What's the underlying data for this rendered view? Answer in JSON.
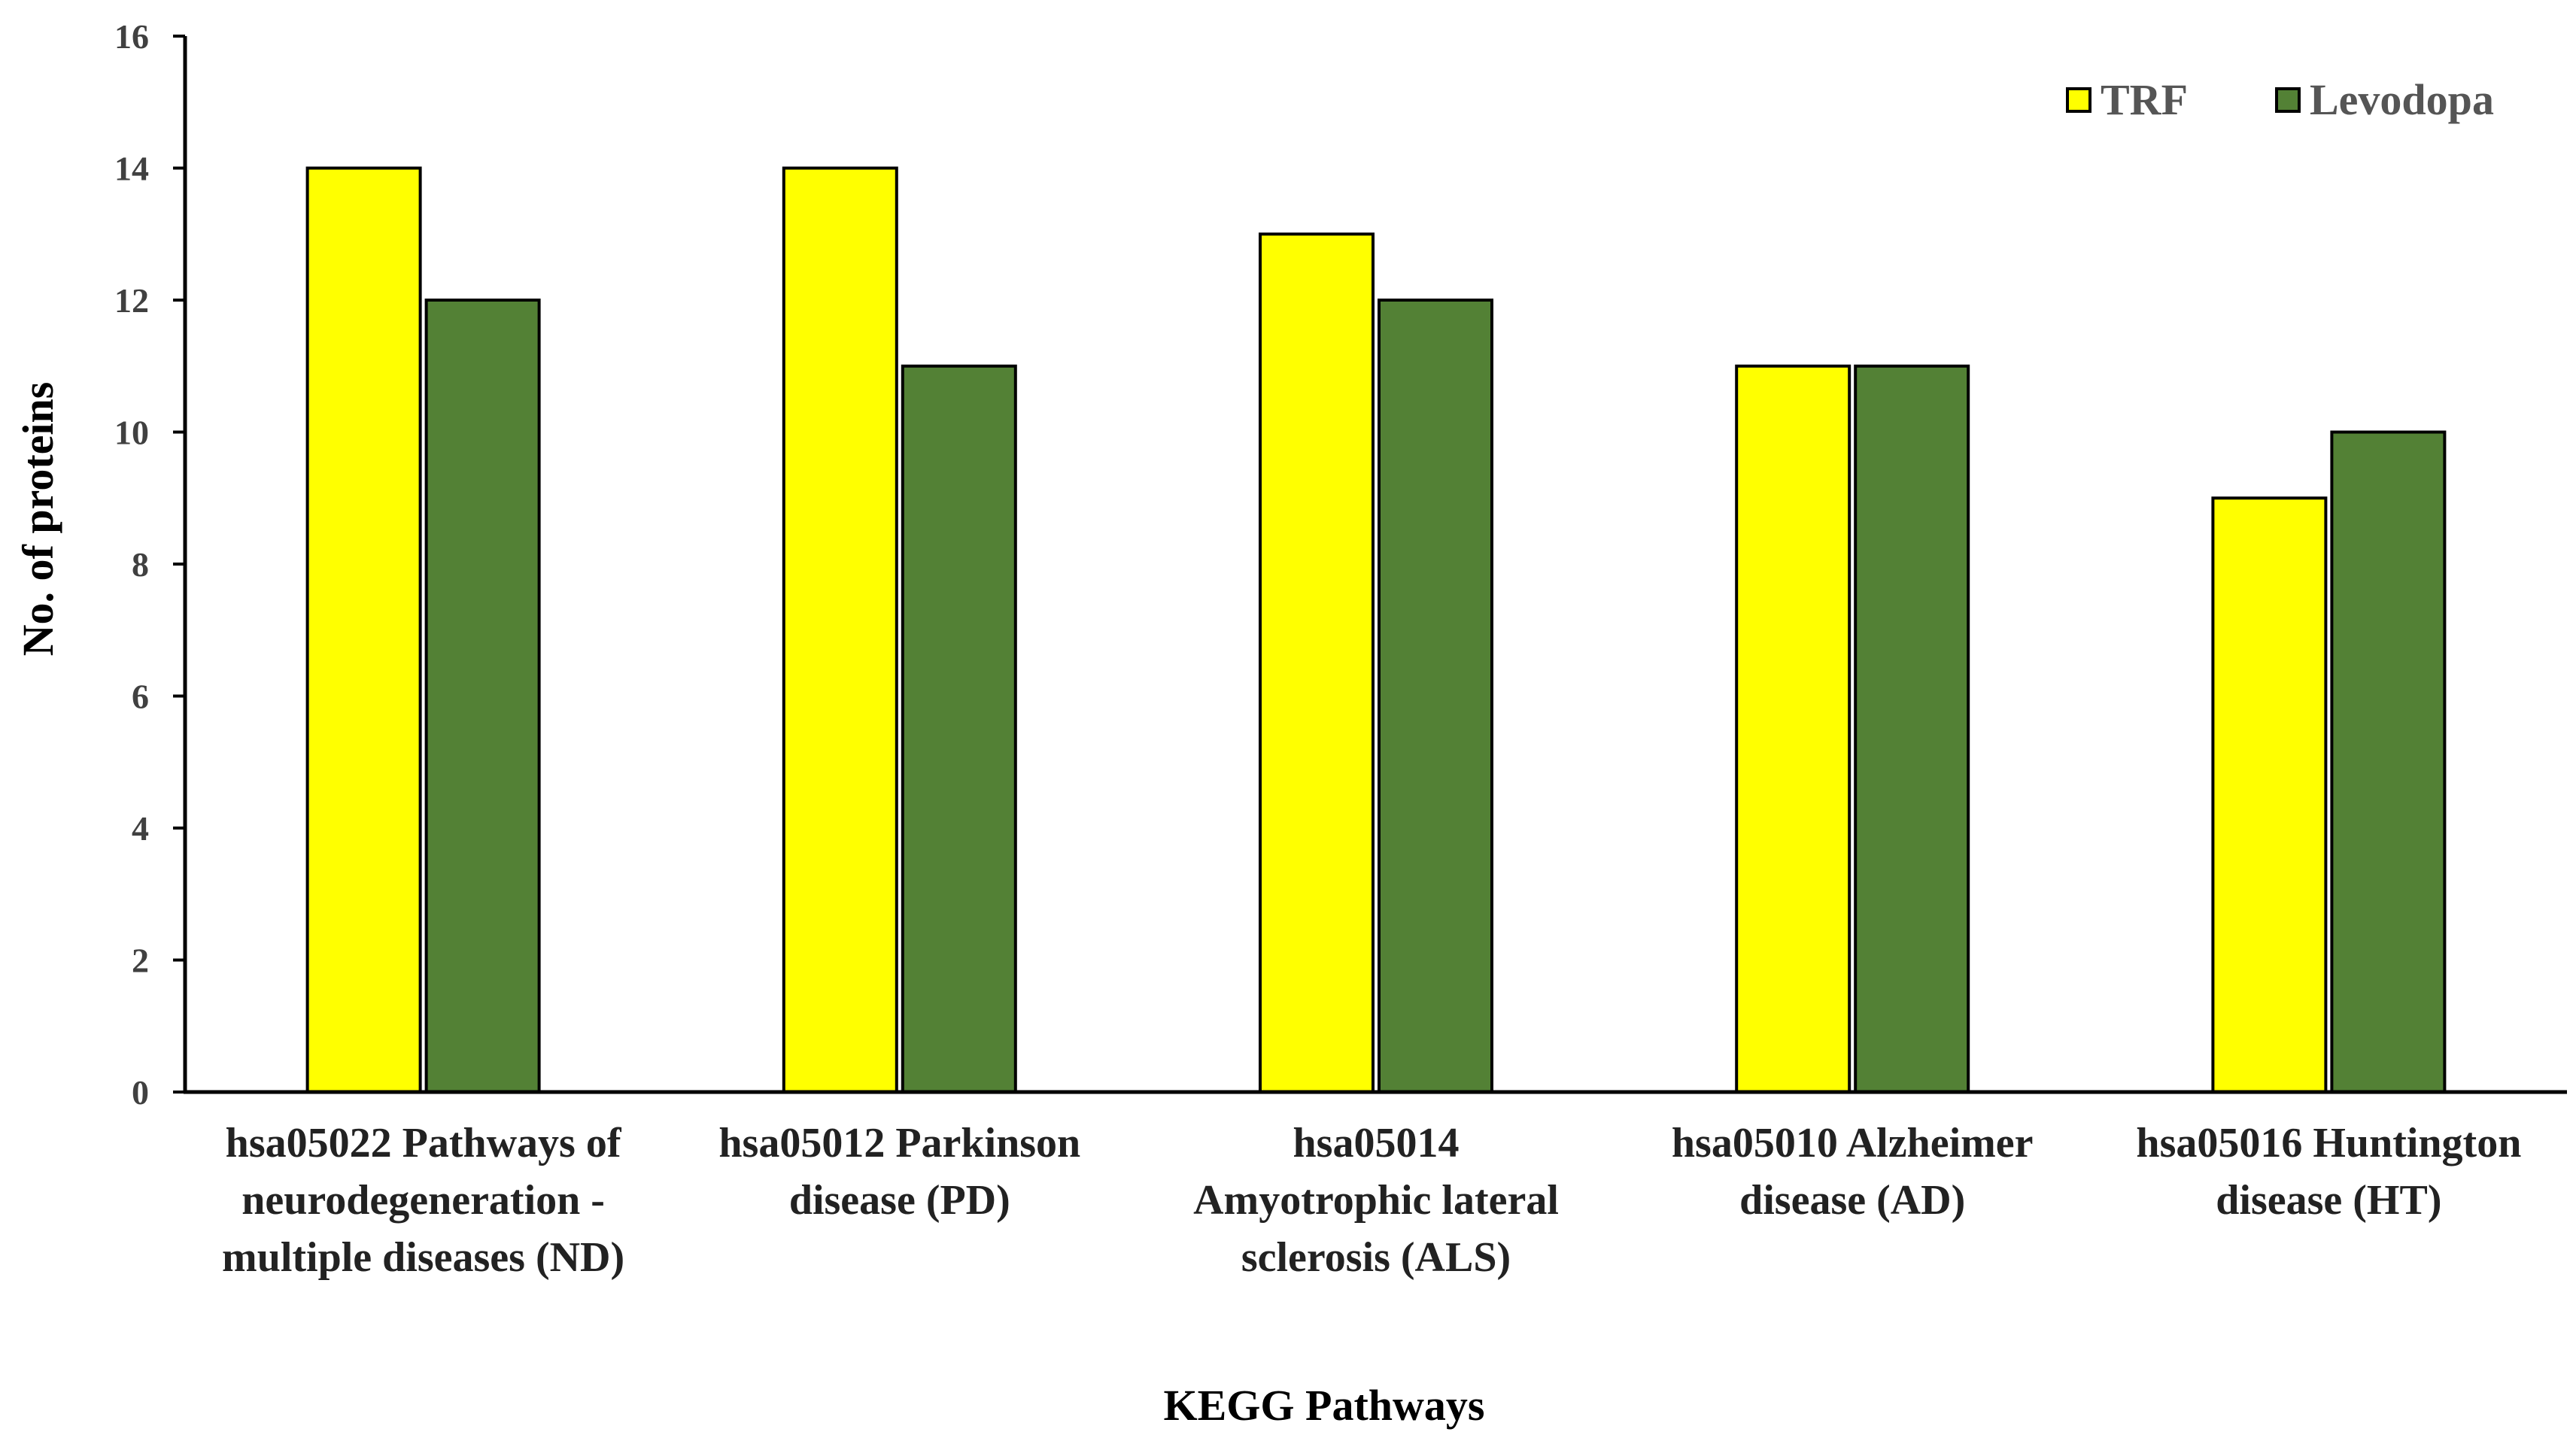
{
  "chart_data": {
    "type": "bar",
    "title": "",
    "xlabel": "KEGG Pathways",
    "ylabel": "No. of  proteins",
    "ylim": [
      0,
      16
    ],
    "yticks": [
      "0",
      "2",
      "4",
      "6",
      "8",
      "10",
      "12",
      "14",
      "16"
    ],
    "grid": false,
    "legend_position": "top-right",
    "categories": [
      [
        "hsa05022 Pathways of",
        "neurodegeneration -",
        "multiple diseases (ND)"
      ],
      [
        "hsa05012 Parkinson",
        "disease (PD)"
      ],
      [
        "hsa05014",
        "Amyotrophic lateral",
        "sclerosis (ALS)"
      ],
      [
        "hsa05010 Alzheimer",
        "disease (AD)"
      ],
      [
        "hsa05016 Huntington",
        "disease (HT)"
      ]
    ],
    "series": [
      {
        "name": "TRF",
        "color": "#ffff00",
        "values": [
          14,
          14,
          13,
          11,
          9
        ]
      },
      {
        "name": "Levodopa",
        "color": "#538135",
        "values": [
          12,
          11,
          12,
          11,
          10
        ]
      }
    ]
  }
}
